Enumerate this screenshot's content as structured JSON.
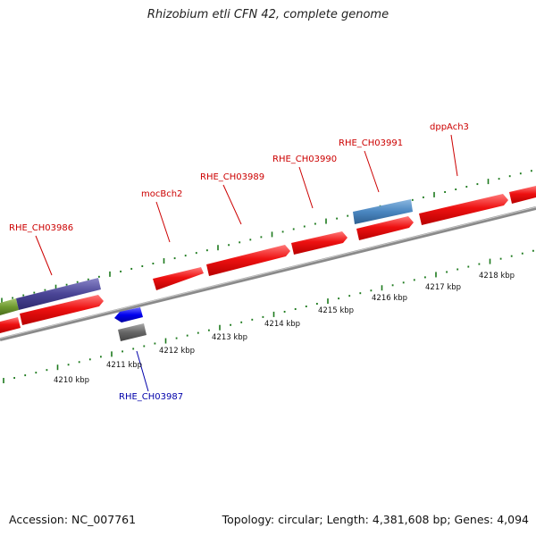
{
  "title": "Rhizobium etli CFN 42, complete genome",
  "footer": {
    "accession": "Accession: NC_007761",
    "summary": "Topology: circular; Length: 4,381,608 bp; Genes: 4,094"
  },
  "colors": {
    "backbone": "#8a8a8a",
    "ticks": "#1d7a1d",
    "gene_forward": "#ee1111",
    "gene_special": "#0000ee",
    "gene_gray": "#666666",
    "label_red": "#cc0000",
    "label_blue": "#0000aa"
  },
  "kbp_labels": [
    "4210 kbp",
    "4211 kbp",
    "4212 kbp",
    "4213 kbp",
    "4214 kbp",
    "4215 kbp",
    "4216 kbp",
    "4217 kbp",
    "4218 kbp"
  ],
  "gene_labels": [
    {
      "text": "RHE_CH03986",
      "color": "red"
    },
    {
      "text": "mocBch2",
      "color": "red"
    },
    {
      "text": "RHE_CH03989",
      "color": "red"
    },
    {
      "text": "RHE_CH03990",
      "color": "red"
    },
    {
      "text": "RHE_CH03991",
      "color": "red"
    },
    {
      "text": "dppAch3",
      "color": "red"
    },
    {
      "text": "RHE_CH03987",
      "color": "blue"
    }
  ]
}
